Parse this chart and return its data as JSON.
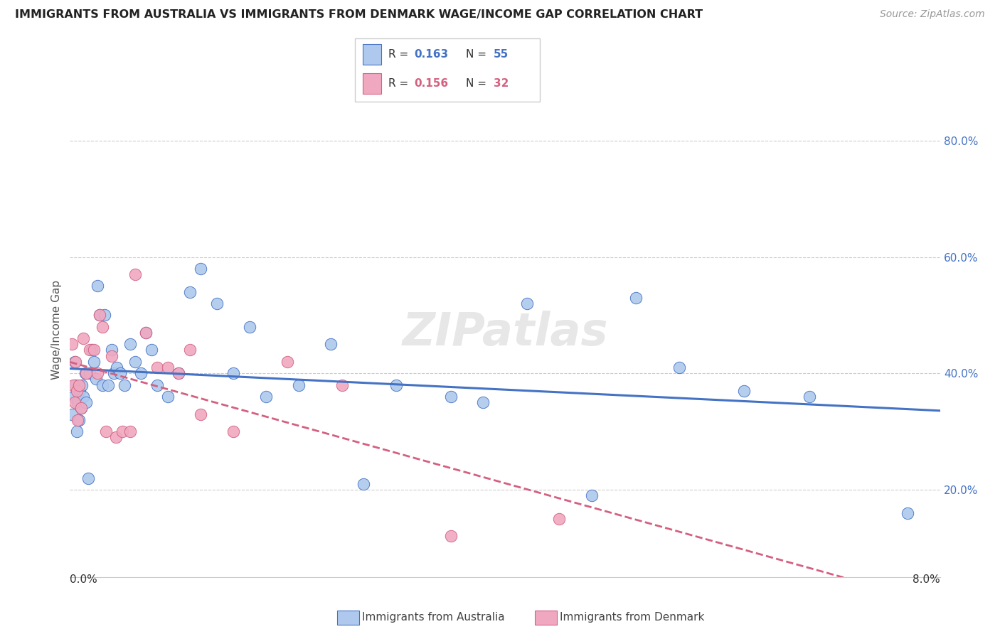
{
  "title": "IMMIGRANTS FROM AUSTRALIA VS IMMIGRANTS FROM DENMARK WAGE/INCOME GAP CORRELATION CHART",
  "source": "Source: ZipAtlas.com",
  "ylabel": "Wage/Income Gap",
  "xlim": [
    0.0,
    8.0
  ],
  "ylim": [
    5.0,
    90.0
  ],
  "ytick_vals": [
    20,
    40,
    60,
    80
  ],
  "ytick_labels": [
    "20.0%",
    "40.0%",
    "60.0%",
    "80.0%"
  ],
  "legend_r1": "R = 0.163",
  "legend_n1": "N = 55",
  "legend_r2": "R = 0.156",
  "legend_n2": "N = 32",
  "color_aus": "#aec9ed",
  "color_den": "#f0a8c0",
  "color_aus_line": "#4472c4",
  "color_den_line": "#d46080",
  "color_text_blue": "#4472c4",
  "color_text_pink": "#d46080",
  "watermark": "ZIPatlas",
  "aus_x": [
    0.02,
    0.03,
    0.04,
    0.05,
    0.06,
    0.07,
    0.08,
    0.09,
    0.1,
    0.11,
    0.12,
    0.14,
    0.15,
    0.17,
    0.18,
    0.2,
    0.22,
    0.24,
    0.25,
    0.27,
    0.3,
    0.32,
    0.35,
    0.38,
    0.4,
    0.43,
    0.46,
    0.5,
    0.55,
    0.6,
    0.65,
    0.7,
    0.75,
    0.8,
    0.9,
    1.0,
    1.1,
    1.2,
    1.35,
    1.5,
    1.65,
    1.8,
    2.1,
    2.4,
    2.7,
    3.0,
    3.5,
    3.8,
    4.2,
    4.8,
    5.2,
    5.6,
    6.2,
    6.8,
    7.7
  ],
  "aus_y": [
    33,
    36,
    42,
    38,
    30,
    35,
    32,
    37,
    34,
    38,
    36,
    40,
    35,
    22,
    40,
    44,
    42,
    39,
    55,
    50,
    38,
    50,
    38,
    44,
    40,
    41,
    40,
    38,
    45,
    42,
    40,
    47,
    44,
    38,
    36,
    40,
    54,
    58,
    52,
    40,
    48,
    36,
    38,
    45,
    21,
    38,
    36,
    35,
    52,
    19,
    53,
    41,
    37,
    36,
    16
  ],
  "den_x": [
    0.02,
    0.03,
    0.04,
    0.05,
    0.06,
    0.07,
    0.08,
    0.1,
    0.12,
    0.15,
    0.18,
    0.22,
    0.25,
    0.27,
    0.3,
    0.33,
    0.38,
    0.42,
    0.48,
    0.55,
    0.6,
    0.7,
    0.8,
    0.9,
    1.0,
    1.1,
    1.2,
    1.5,
    2.0,
    2.5,
    3.5,
    4.5
  ],
  "den_y": [
    45,
    38,
    35,
    42,
    37,
    32,
    38,
    34,
    46,
    40,
    44,
    44,
    40,
    50,
    48,
    30,
    43,
    29,
    30,
    30,
    57,
    47,
    41,
    41,
    40,
    44,
    33,
    30,
    42,
    38,
    12,
    15
  ]
}
